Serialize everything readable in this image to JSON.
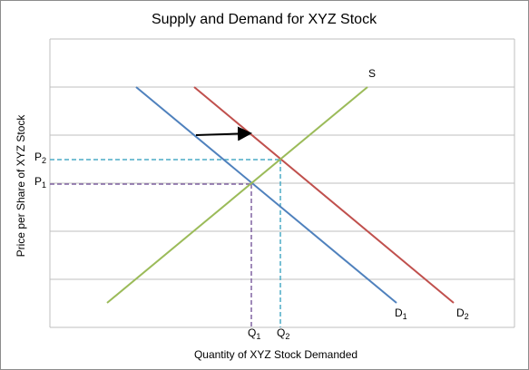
{
  "title": "Supply and Demand for XYZ Stock",
  "x_axis_label": "Quantity of XYZ Stock Demanded",
  "y_axis_label": "Price per Share of XYZ Stock",
  "curves": [
    {
      "name": "S"
    },
    {
      "name": "D",
      "subscript": "1"
    },
    {
      "name": "D",
      "subscript": "2"
    }
  ],
  "price_levels": [
    {
      "name": "P",
      "subscript": "2"
    },
    {
      "name": "P",
      "subscript": "1"
    }
  ],
  "quantity_levels": [
    {
      "name": "Q",
      "subscript": "1"
    },
    {
      "name": "Q",
      "subscript": "2"
    }
  ]
}
